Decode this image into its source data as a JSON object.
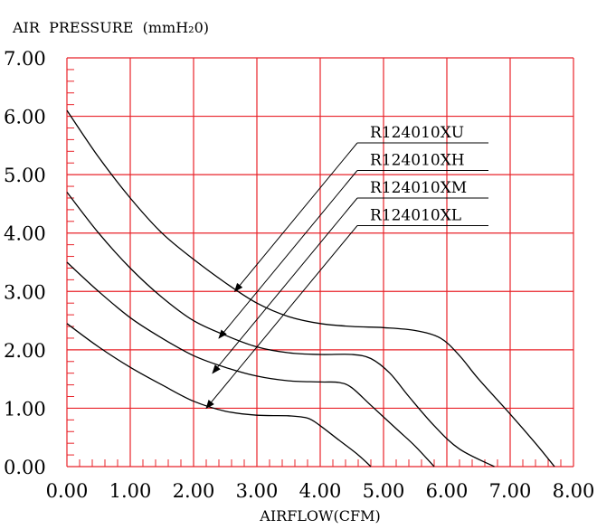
{
  "chart_data": {
    "type": "line",
    "ylabel": "AIR  PRESSURE  (mmH₂0)",
    "xlabel": "AIRFLOW(CFM)",
    "xlim": [
      0,
      8
    ],
    "ylim": [
      0,
      7
    ],
    "x_ticks": [
      "0.00",
      "1.00",
      "2.00",
      "3.00",
      "4.00",
      "5.00",
      "6.00",
      "7.00",
      "8.00"
    ],
    "y_ticks": [
      "0.00",
      "1.00",
      "2.00",
      "3.00",
      "4.00",
      "5.00",
      "6.00",
      "7.00"
    ],
    "grid": true,
    "colors": {
      "grid": "#e8232a",
      "curve": "#000000"
    },
    "series": [
      {
        "name": "R124010XU",
        "points": [
          [
            0,
            6.1
          ],
          [
            0.5,
            5.3
          ],
          [
            1.0,
            4.6
          ],
          [
            1.5,
            4.0
          ],
          [
            2.0,
            3.55
          ],
          [
            2.5,
            3.15
          ],
          [
            3.0,
            2.8
          ],
          [
            3.5,
            2.57
          ],
          [
            4.0,
            2.45
          ],
          [
            4.5,
            2.4
          ],
          [
            5.0,
            2.38
          ],
          [
            5.5,
            2.33
          ],
          [
            5.9,
            2.2
          ],
          [
            6.2,
            1.9
          ],
          [
            6.5,
            1.5
          ],
          [
            7.0,
            0.9
          ],
          [
            7.4,
            0.4
          ],
          [
            7.7,
            0.0
          ]
        ],
        "arrow_tip": [
          2.65,
          3.0
        ]
      },
      {
        "name": "R124010XH",
        "points": [
          [
            0,
            4.7
          ],
          [
            0.5,
            4.0
          ],
          [
            1.0,
            3.4
          ],
          [
            1.5,
            2.9
          ],
          [
            2.0,
            2.5
          ],
          [
            2.5,
            2.25
          ],
          [
            3.0,
            2.05
          ],
          [
            3.5,
            1.95
          ],
          [
            4.0,
            1.92
          ],
          [
            4.5,
            1.92
          ],
          [
            4.8,
            1.85
          ],
          [
            5.1,
            1.6
          ],
          [
            5.4,
            1.2
          ],
          [
            5.8,
            0.7
          ],
          [
            6.2,
            0.3
          ],
          [
            6.75,
            0.0
          ]
        ],
        "arrow_tip": [
          2.4,
          2.2
        ]
      },
      {
        "name": "R124010XM",
        "points": [
          [
            0,
            3.5
          ],
          [
            0.5,
            3.0
          ],
          [
            1.0,
            2.55
          ],
          [
            1.5,
            2.2
          ],
          [
            2.0,
            1.9
          ],
          [
            2.5,
            1.7
          ],
          [
            3.0,
            1.55
          ],
          [
            3.5,
            1.47
          ],
          [
            4.0,
            1.45
          ],
          [
            4.3,
            1.44
          ],
          [
            4.5,
            1.35
          ],
          [
            4.8,
            1.05
          ],
          [
            5.2,
            0.65
          ],
          [
            5.5,
            0.35
          ],
          [
            5.8,
            0.0
          ]
        ],
        "arrow_tip": [
          2.3,
          1.6
        ]
      },
      {
        "name": "R124010XL",
        "points": [
          [
            0,
            2.45
          ],
          [
            0.5,
            2.05
          ],
          [
            1.0,
            1.7
          ],
          [
            1.5,
            1.4
          ],
          [
            2.0,
            1.12
          ],
          [
            2.5,
            0.95
          ],
          [
            3.0,
            0.88
          ],
          [
            3.5,
            0.87
          ],
          [
            3.8,
            0.83
          ],
          [
            4.0,
            0.7
          ],
          [
            4.3,
            0.45
          ],
          [
            4.6,
            0.2
          ],
          [
            4.8,
            0.0
          ]
        ],
        "arrow_tip": [
          2.2,
          1.0
        ]
      }
    ]
  }
}
